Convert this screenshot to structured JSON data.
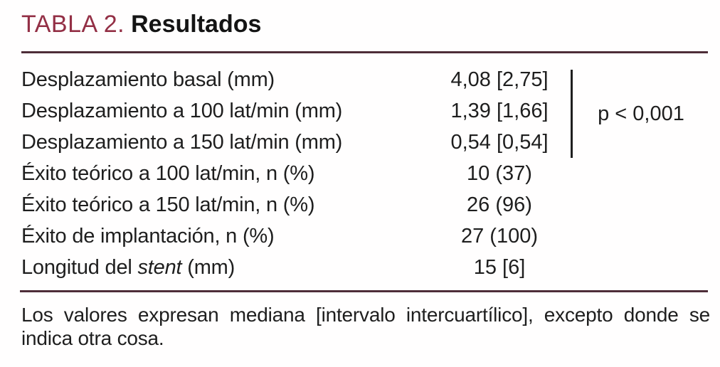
{
  "colors": {
    "accent_red": "#932f45",
    "rule_maroon": "#4e2d38",
    "text_black": "#1e1e1e"
  },
  "header": {
    "table_label": "TABLA 2.",
    "table_title": "Resultados"
  },
  "table": {
    "rows": [
      {
        "label": [
          {
            "text": "Desplazamiento basal (mm)"
          }
        ],
        "value": "4,08 [2,75]"
      },
      {
        "label": [
          {
            "text": "Desplazamiento a 100 lat/min (mm)"
          }
        ],
        "value": "1,39 [1,66]"
      },
      {
        "label": [
          {
            "text": "Desplazamiento a 150 lat/min (mm)"
          }
        ],
        "value": "0,54 [0,54]"
      },
      {
        "label": [
          {
            "text": "Éxito teórico a 100 lat/min, n (%)"
          }
        ],
        "value": "10 (37)"
      },
      {
        "label": [
          {
            "text": "Éxito teórico a 150 lat/min, n (%)"
          }
        ],
        "value": "26 (96)"
      },
      {
        "label": [
          {
            "text": "Éxito de implantación, n (%)"
          }
        ],
        "value": "27 (100)"
      },
      {
        "label": [
          {
            "text": "Longitud del "
          },
          {
            "text": "stent",
            "italic": true
          },
          {
            "text": " (mm)"
          }
        ],
        "value": "15 [6]"
      }
    ],
    "p_value": "p < 0,001"
  },
  "footnote": "Los valores expresan mediana [intervalo intercuartílico], excepto donde se indica otra cosa."
}
